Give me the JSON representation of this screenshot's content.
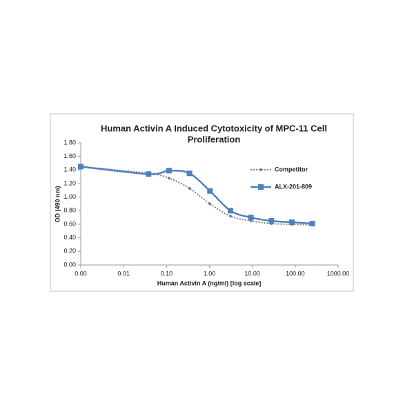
{
  "chart_data": {
    "type": "line",
    "title": [
      "Human Activin A Induced Cytotoxicity of MPC-11 Cell",
      "Proliferation"
    ],
    "x_label": "Human Activin A (ng/ml) [log scale]",
    "y_label": "OD (490 nm)",
    "x": [
      0.001,
      0.0381,
      0.114,
      0.343,
      1.03,
      3.09,
      9.26,
      27.8,
      83.3,
      250
    ],
    "series": [
      {
        "name": "Competitor",
        "color": "#7f7f7f",
        "dash": true,
        "marker": "dot",
        "values": [
          1.45,
          1.35,
          1.28,
          1.13,
          0.9,
          0.72,
          0.65,
          0.61,
          0.6,
          0.59
        ]
      },
      {
        "name": "ALX-201-809",
        "color": "#4f81bd",
        "dash": false,
        "marker": "square",
        "values": [
          1.45,
          1.34,
          1.39,
          1.35,
          1.09,
          0.8,
          0.7,
          0.65,
          0.63,
          0.61
        ]
      }
    ],
    "xscale": "log",
    "xlim": [
      0.001,
      1000
    ],
    "xticks": [
      {
        "value": 0.001,
        "label": "0.00"
      },
      {
        "value": 0.01,
        "label": "0.01"
      },
      {
        "value": 0.1,
        "label": "0.10"
      },
      {
        "value": 1,
        "label": "1.00"
      },
      {
        "value": 10,
        "label": "10.00"
      },
      {
        "value": 100,
        "label": "100.00"
      },
      {
        "value": 1000,
        "label": "1000.00"
      }
    ],
    "ylim": [
      0,
      1.8
    ],
    "yticks": [
      {
        "value": 0,
        "label": "0.00"
      },
      {
        "value": 0.2,
        "label": "0.20"
      },
      {
        "value": 0.4,
        "label": "0.40"
      },
      {
        "value": 0.6,
        "label": "0.60"
      },
      {
        "value": 0.8,
        "label": "0.80"
      },
      {
        "value": 1.0,
        "label": "1.00"
      },
      {
        "value": 1.2,
        "label": "1.20"
      },
      {
        "value": 1.4,
        "label": "1.40"
      },
      {
        "value": 1.6,
        "label": "1.60"
      },
      {
        "value": 1.8,
        "label": "1.80"
      }
    ],
    "grid": false,
    "legend": "right"
  }
}
